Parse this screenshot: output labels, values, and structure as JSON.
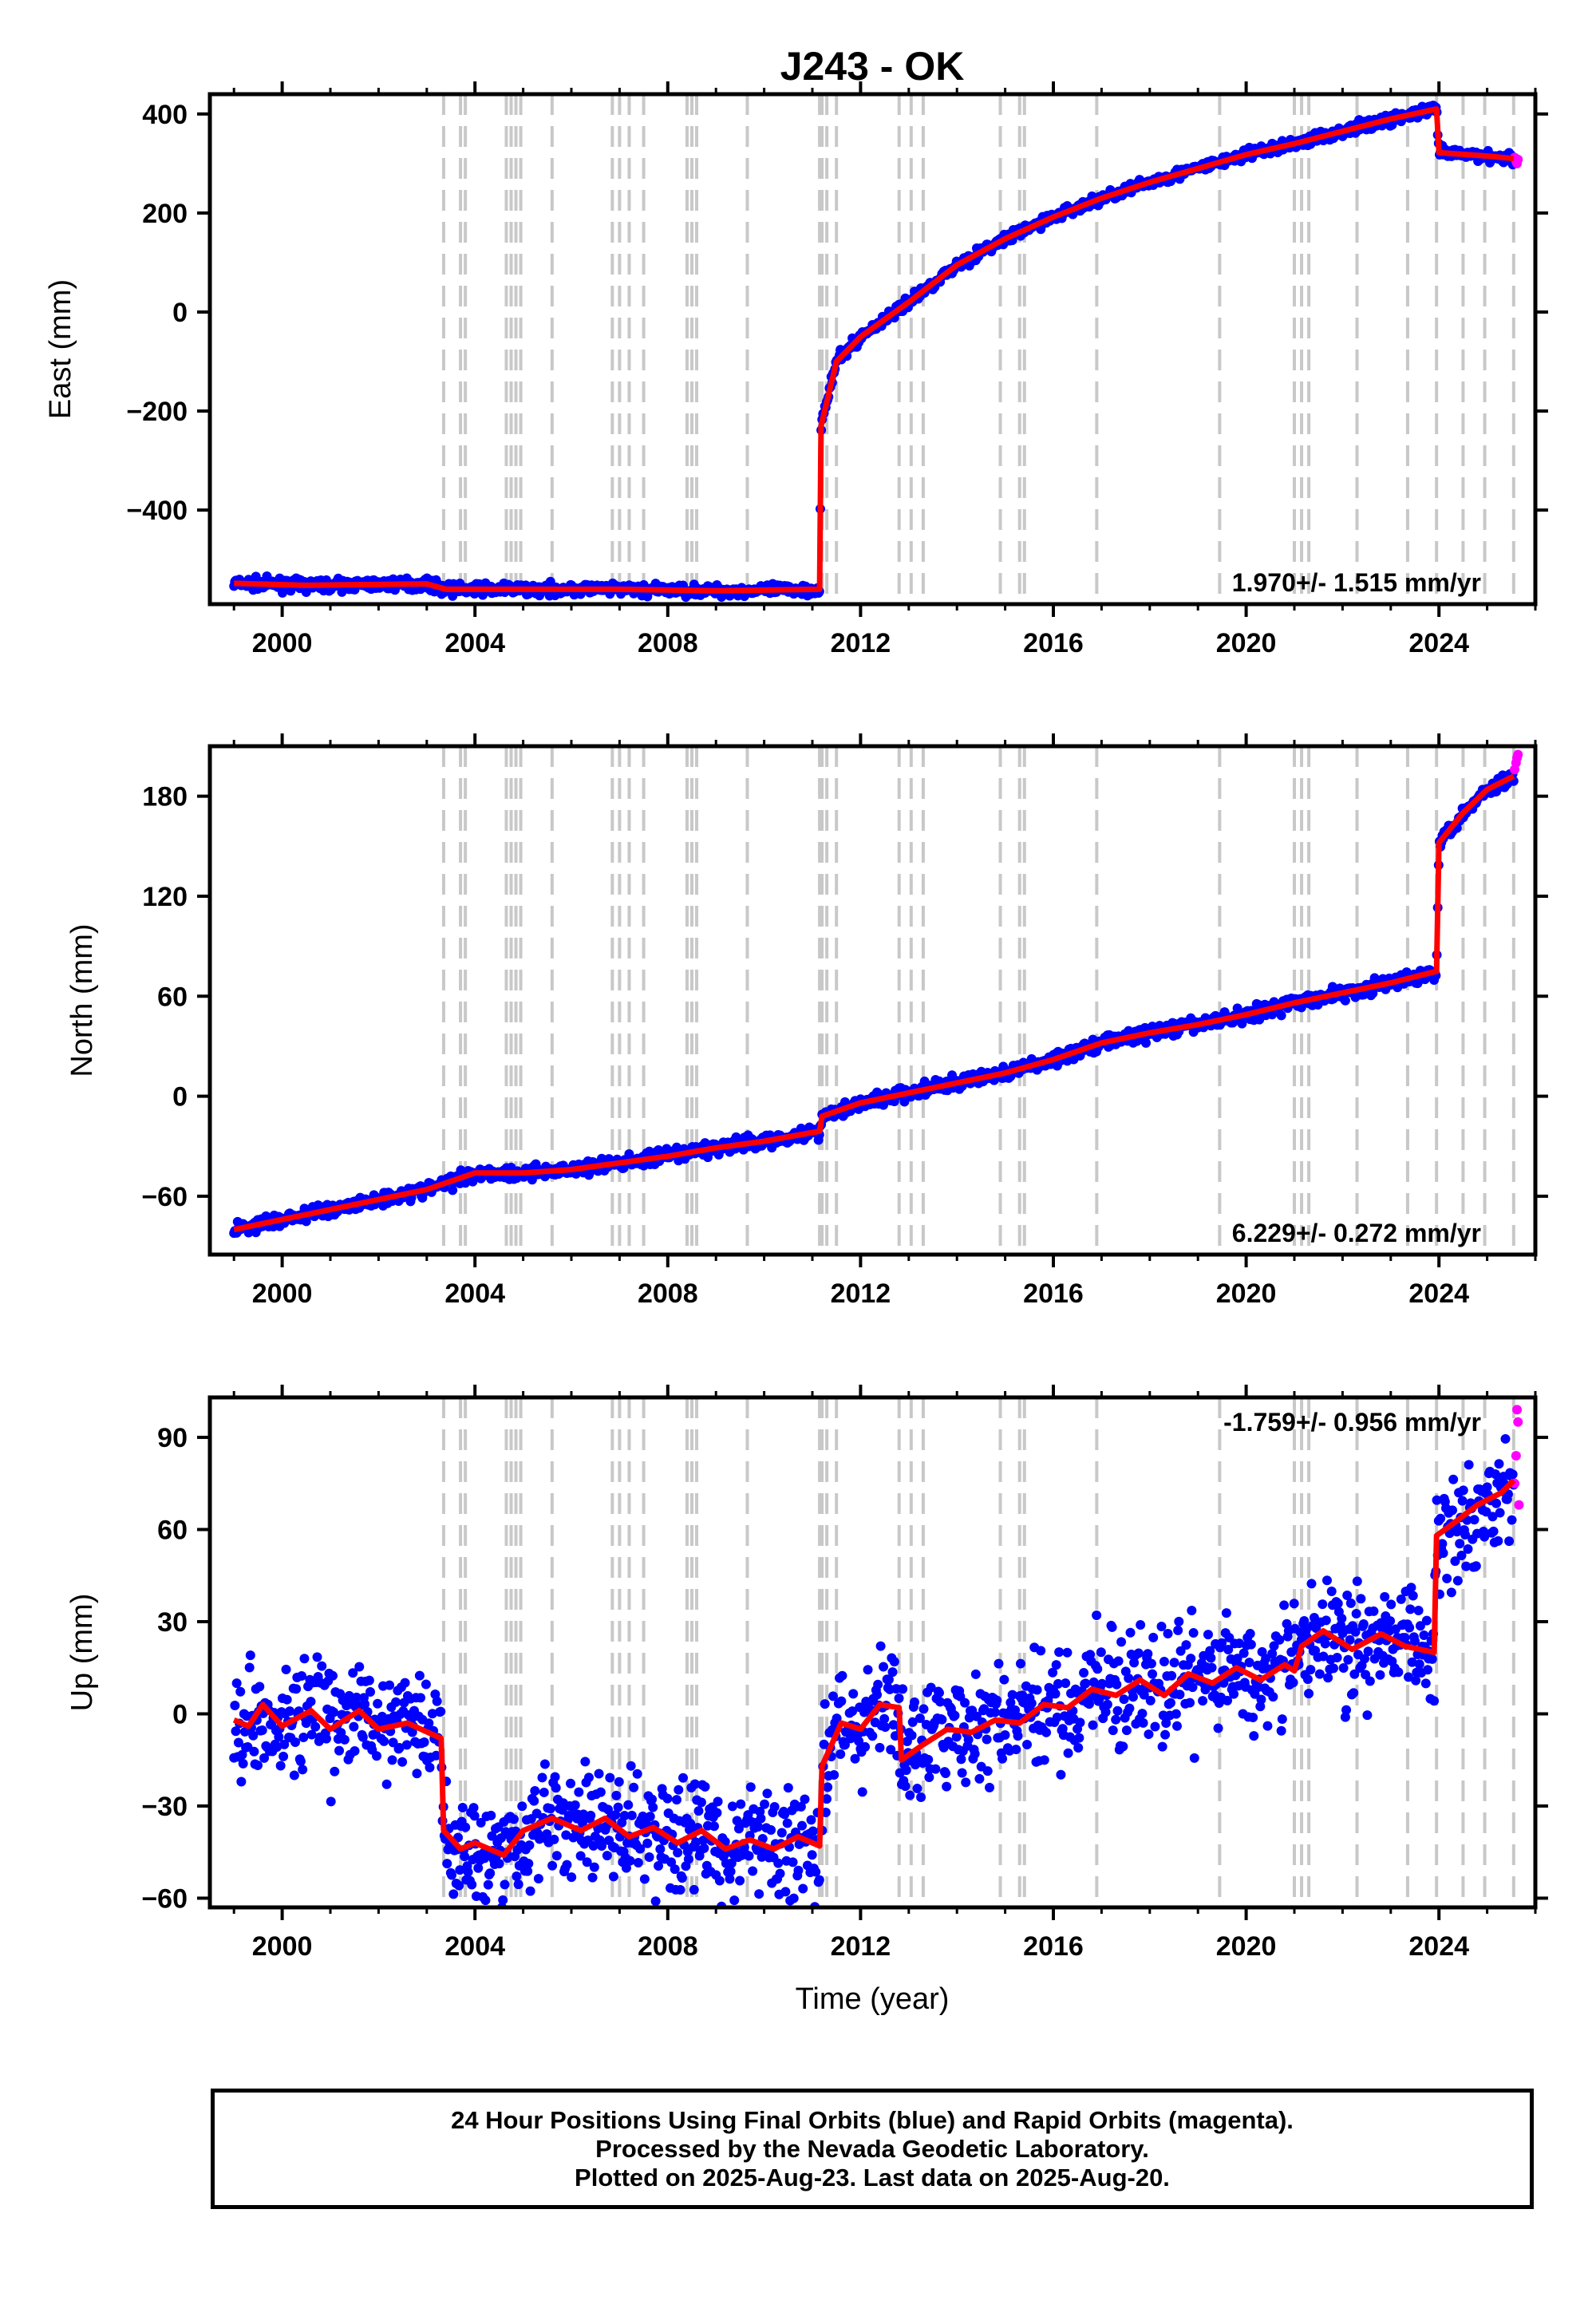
{
  "title": "J243 - OK",
  "xlabel": "Time (year)",
  "caption": {
    "line1": "24 Hour Positions Using Final Orbits (blue) and Rapid Orbits (magenta).",
    "line2": "Processed by the Nevada Geodetic Laboratory.",
    "line3": "Plotted on 2025-Aug-23. Last data on 2025-Aug-20."
  },
  "colors": {
    "final": "#0000ff",
    "rapid": "#ff00ff",
    "model": "#ff0000",
    "events": "#c8c8c8"
  },
  "chart_data": [
    {
      "type": "scatter",
      "ylabel": "East (mm)",
      "rate": "1.970+/- 1.515 mm/yr",
      "xlim": [
        1998.5,
        2026.0
      ],
      "ylim": [
        -590,
        440
      ],
      "xticks": [
        2000,
        2004,
        2008,
        2012,
        2016,
        2020,
        2024
      ],
      "yticks": [
        -400,
        -200,
        0,
        200,
        400
      ],
      "ytick_labels": [
        "−400",
        "−200",
        "0",
        "200",
        "400"
      ],
      "event_years": [
        2003.35,
        2003.7,
        2003.8,
        2004.65,
        2004.75,
        2004.85,
        2004.95,
        2005.6,
        2006.85,
        2007.0,
        2007.2,
        2007.5,
        2008.4,
        2008.5,
        2008.6,
        2009.65,
        2011.15,
        2011.2,
        2011.3,
        2011.5,
        2012.8,
        2013.05,
        2013.3,
        2014.9,
        2015.3,
        2015.4,
        2016.9,
        2019.45,
        2021.0,
        2021.15,
        2021.3,
        2022.3,
        2023.35,
        2023.95,
        2024.5,
        2024.95,
        2025.55
      ],
      "model": {
        "x": [
          1999.0,
          2000.5,
          2003.0,
          2003.4,
          2005.0,
          2007.0,
          2009.0,
          2011.15,
          2011.18,
          2011.5,
          2012.0,
          2013.0,
          2014.0,
          2015.0,
          2016.0,
          2017.0,
          2018.0,
          2019.0,
          2020.0,
          2021.0,
          2022.0,
          2023.0,
          2023.95,
          2024.0,
          2025.0,
          2025.55
        ],
        "y": [
          -548,
          -552,
          -549,
          -560,
          -560,
          -560,
          -563,
          -560,
          -230,
          -100,
          -50,
          20,
          95,
          148,
          192,
          230,
          262,
          290,
          318,
          340,
          365,
          390,
          410,
          322,
          315,
          310
        ]
      },
      "final_points": {
        "x": [
          1999.0,
          2000.5,
          2003.0,
          2003.4,
          2005.0,
          2007.0,
          2009.0,
          2011.15,
          2011.18,
          2011.5,
          2012.0,
          2013.0,
          2014.0,
          2015.0,
          2016.0,
          2017.0,
          2018.0,
          2019.0,
          2020.0,
          2021.0,
          2022.0,
          2023.0,
          2023.95,
          2024.0,
          2025.0,
          2025.55
        ],
        "y": [
          -548,
          -552,
          -549,
          -560,
          -560,
          -560,
          -563,
          -560,
          -230,
          -100,
          -50,
          20,
          95,
          148,
          192,
          230,
          262,
          290,
          318,
          340,
          365,
          390,
          410,
          322,
          315,
          310
        ],
        "spread": 8
      },
      "rapid_points": {
        "x": [
          2025.57,
          2025.6,
          2025.62,
          2025.64
        ],
        "y": [
          312,
          305,
          300,
          308
        ]
      }
    },
    {
      "type": "scatter",
      "ylabel": "North (mm)",
      "rate": "6.229+/- 0.272 mm/yr",
      "xlim": [
        1998.5,
        2026.0
      ],
      "ylim": [
        -95,
        210
      ],
      "xticks": [
        2000,
        2004,
        2008,
        2012,
        2016,
        2020,
        2024
      ],
      "yticks": [
        -60,
        0,
        60,
        120,
        180
      ],
      "ytick_labels": [
        "−60",
        "0",
        "60",
        "120",
        "180"
      ],
      "event_years": [
        2003.35,
        2003.7,
        2003.8,
        2004.65,
        2004.75,
        2004.85,
        2004.95,
        2005.6,
        2006.85,
        2007.0,
        2007.2,
        2007.5,
        2008.4,
        2008.5,
        2008.6,
        2009.65,
        2011.15,
        2011.2,
        2011.3,
        2011.5,
        2012.8,
        2013.05,
        2013.3,
        2014.9,
        2015.3,
        2015.4,
        2016.9,
        2019.45,
        2021.0,
        2021.15,
        2021.3,
        2022.3,
        2023.35,
        2023.95,
        2024.5,
        2024.95,
        2025.55
      ],
      "model": {
        "x": [
          1999.0,
          2000.0,
          2001.0,
          2002.0,
          2003.0,
          2004.0,
          2005.0,
          2006.0,
          2007.0,
          2008.0,
          2009.0,
          2010.0,
          2011.15,
          2011.2,
          2012.0,
          2013.0,
          2014.0,
          2015.0,
          2016.0,
          2017.0,
          2018.0,
          2019.0,
          2020.0,
          2021.0,
          2022.0,
          2023.0,
          2023.95,
          2024.0,
          2024.5,
          2025.0,
          2025.55
        ],
        "y": [
          -80,
          -74,
          -68,
          -62,
          -56,
          -46,
          -46,
          -44,
          -40,
          -36,
          -31,
          -27,
          -21,
          -12,
          -4,
          2,
          8,
          14,
          22,
          32,
          38,
          43,
          49,
          56,
          62,
          68,
          75,
          152,
          170,
          184,
          192
        ]
      },
      "final_points": {
        "x": [
          1999.0,
          2000.0,
          2001.0,
          2002.0,
          2003.0,
          2004.0,
          2005.0,
          2006.0,
          2007.0,
          2008.0,
          2009.0,
          2010.0,
          2011.15,
          2011.2,
          2012.0,
          2013.0,
          2014.0,
          2015.0,
          2016.0,
          2017.0,
          2018.0,
          2019.0,
          2020.0,
          2021.0,
          2022.0,
          2023.0,
          2023.95,
          2024.0,
          2024.5,
          2025.0,
          2025.55
        ],
        "y": [
          -80,
          -74,
          -68,
          -62,
          -56,
          -46,
          -46,
          -44,
          -40,
          -36,
          -31,
          -27,
          -21,
          -12,
          -4,
          2,
          8,
          14,
          22,
          32,
          38,
          43,
          49,
          56,
          62,
          68,
          75,
          152,
          170,
          184,
          192
        ],
        "spread": 3
      },
      "rapid_points": {
        "x": [
          2025.57,
          2025.6,
          2025.62,
          2025.64
        ],
        "y": [
          196,
          200,
          203,
          205
        ]
      }
    },
    {
      "type": "scatter",
      "ylabel": "Up (mm)",
      "rate": "-1.759+/- 0.956 mm/yr",
      "xlim": [
        1998.5,
        2026.0
      ],
      "ylim": [
        -63,
        103
      ],
      "xticks": [
        2000,
        2004,
        2008,
        2012,
        2016,
        2020,
        2024
      ],
      "yticks": [
        -60,
        -30,
        0,
        30,
        60,
        90
      ],
      "ytick_labels": [
        "−60",
        "−30",
        "0",
        "30",
        "60",
        "90"
      ],
      "event_years": [
        2003.35,
        2003.7,
        2003.8,
        2004.65,
        2004.75,
        2004.85,
        2004.95,
        2005.6,
        2006.85,
        2007.0,
        2007.2,
        2007.5,
        2008.4,
        2008.5,
        2008.6,
        2009.65,
        2011.15,
        2011.2,
        2011.3,
        2011.5,
        2012.8,
        2013.05,
        2013.3,
        2014.9,
        2015.3,
        2015.4,
        2016.9,
        2019.45,
        2021.0,
        2021.15,
        2021.3,
        2022.3,
        2023.35,
        2023.95,
        2024.5,
        2024.95,
        2025.55
      ],
      "model": {
        "x": [
          1999.0,
          1999.3,
          1999.6,
          2000.0,
          2000.6,
          2001.0,
          2001.6,
          2002.0,
          2002.6,
          2003.3,
          2003.35,
          2003.7,
          2004.0,
          2004.6,
          2005.0,
          2005.6,
          2006.2,
          2006.7,
          2007.2,
          2007.7,
          2008.2,
          2008.7,
          2009.2,
          2009.7,
          2010.2,
          2010.7,
          2011.15,
          2011.2,
          2011.6,
          2012.0,
          2012.4,
          2012.8,
          2012.85,
          2013.3,
          2013.8,
          2014.3,
          2014.8,
          2015.3,
          2015.8,
          2016.3,
          2016.8,
          2017.3,
          2017.8,
          2018.3,
          2018.8,
          2019.3,
          2019.8,
          2020.3,
          2020.8,
          2021.0,
          2021.15,
          2021.6,
          2022.2,
          2022.8,
          2023.3,
          2023.9,
          2023.95,
          2024.3,
          2024.8,
          2025.3,
          2025.55
        ],
        "y": [
          -2,
          -4,
          3,
          -4,
          1,
          -5,
          1,
          -5,
          -3,
          -8,
          -38,
          -44,
          -42,
          -46,
          -38,
          -34,
          -38,
          -34,
          -40,
          -37,
          -42,
          -38,
          -44,
          -41,
          -44,
          -40,
          -43,
          -17,
          -3,
          -5,
          3,
          2,
          -15,
          -10,
          -5,
          -6,
          -2,
          -3,
          3,
          2,
          8,
          6,
          11,
          6,
          13,
          10,
          15,
          11,
          16,
          14,
          22,
          27,
          21,
          26,
          22,
          20,
          58,
          62,
          68,
          72,
          76
        ]
      },
      "final_points": {
        "x": [
          1999.0,
          1999.3,
          1999.6,
          2000.0,
          2000.6,
          2001.0,
          2001.6,
          2002.0,
          2002.6,
          2003.3,
          2003.35,
          2003.7,
          2004.0,
          2004.6,
          2005.0,
          2005.6,
          2006.2,
          2006.7,
          2007.2,
          2007.7,
          2008.2,
          2008.7,
          2009.2,
          2009.7,
          2010.2,
          2010.7,
          2011.15,
          2011.2,
          2011.6,
          2012.0,
          2012.4,
          2012.8,
          2012.85,
          2013.3,
          2013.8,
          2014.3,
          2014.8,
          2015.3,
          2015.8,
          2016.3,
          2016.8,
          2017.3,
          2017.8,
          2018.3,
          2018.8,
          2019.3,
          2019.8,
          2020.3,
          2020.8,
          2021.0,
          2021.15,
          2021.6,
          2022.2,
          2022.8,
          2023.3,
          2023.9,
          2023.95,
          2024.3,
          2024.8,
          2025.3,
          2025.55
        ],
        "y": [
          -2,
          -4,
          3,
          -4,
          1,
          -5,
          1,
          -5,
          -3,
          -8,
          -38,
          -44,
          -42,
          -46,
          -38,
          -34,
          -38,
          -34,
          -40,
          -37,
          -42,
          -38,
          -44,
          -41,
          -44,
          -40,
          -43,
          -17,
          -3,
          -5,
          3,
          2,
          -15,
          -10,
          -5,
          -6,
          -2,
          -3,
          3,
          2,
          8,
          6,
          11,
          6,
          13,
          10,
          15,
          11,
          16,
          14,
          22,
          27,
          21,
          26,
          22,
          20,
          58,
          62,
          68,
          72,
          76
        ],
        "spread": 13
      },
      "rapid_points": {
        "x": [
          2025.57,
          2025.6,
          2025.62,
          2025.64,
          2025.66
        ],
        "y": [
          75,
          84,
          99,
          95,
          68
        ]
      }
    }
  ]
}
